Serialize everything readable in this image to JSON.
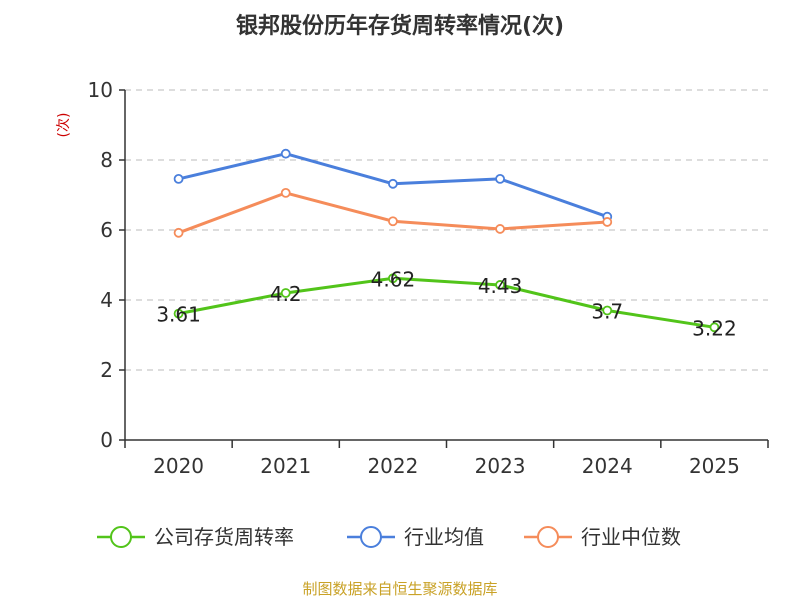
{
  "chart_data": {
    "type": "line",
    "title": "银邦股份历年存货周转率情况(次)",
    "ylabel": "(次)",
    "xlabel": "",
    "categories": [
      "2020",
      "2021",
      "2022",
      "2023",
      "2024",
      "2025"
    ],
    "ylim": [
      0,
      10
    ],
    "yticks": [
      0,
      2,
      4,
      6,
      8,
      10
    ],
    "grid": true,
    "legend_position": "bottom",
    "series": [
      {
        "name": "公司存货周转率",
        "color": "#52c41a",
        "values": [
          3.61,
          4.2,
          4.62,
          4.43,
          3.7,
          3.22
        ],
        "data_labels": [
          "3.61",
          "4.2",
          "4.62",
          "4.43",
          "3.7",
          "3.22"
        ]
      },
      {
        "name": "行业均值",
        "color": "#4a7fdc",
        "values": [
          7.46,
          8.18,
          7.32,
          7.46,
          6.38,
          null
        ]
      },
      {
        "name": "行业中位数",
        "color": "#f58c5a",
        "values": [
          5.92,
          7.06,
          6.25,
          6.03,
          6.23,
          null
        ]
      }
    ],
    "source": "制图数据来自恒生聚源数据库"
  }
}
